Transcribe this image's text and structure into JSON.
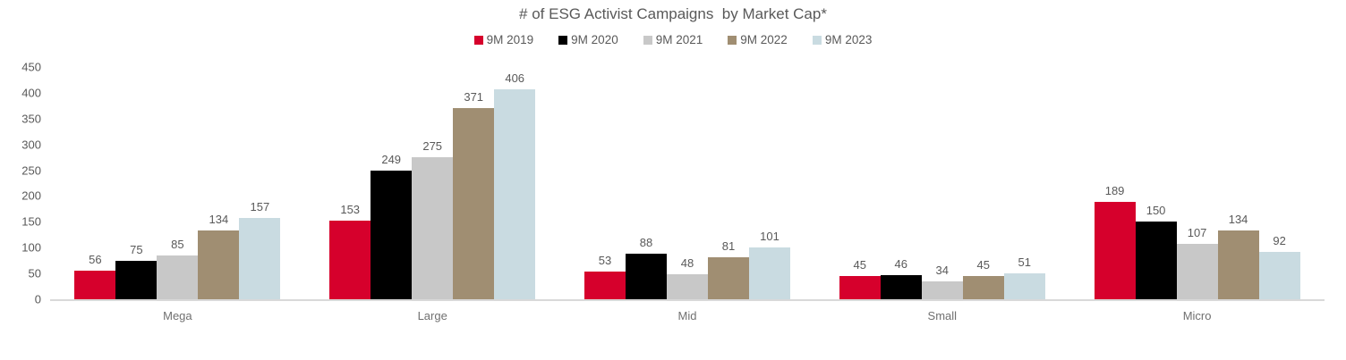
{
  "chart": {
    "title": "# of ESG Activist Campaigns  by Market Cap*"
  },
  "chart_data": {
    "type": "bar",
    "title": "# of ESG Activist Campaigns  by Market Cap*",
    "xlabel": "",
    "ylabel": "",
    "categories": [
      "Mega",
      "Large",
      "Mid",
      "Small",
      "Micro"
    ],
    "series": [
      {
        "name": "9M 2019",
        "color": "#D6002C",
        "values": [
          56,
          153,
          53,
          45,
          189
        ]
      },
      {
        "name": "9M 2020",
        "color": "#000000",
        "values": [
          75,
          249,
          88,
          46,
          150
        ]
      },
      {
        "name": "9M 2021",
        "color": "#C8C8C8",
        "values": [
          85,
          275,
          48,
          34,
          107
        ]
      },
      {
        "name": "9M 2022",
        "color": "#A08E72",
        "values": [
          134,
          371,
          81,
          45,
          134
        ]
      },
      {
        "name": "9M 2023",
        "color": "#C9DBE1",
        "values": [
          157,
          406,
          101,
          51,
          92
        ]
      }
    ],
    "ylim": [
      0,
      450
    ],
    "ytick_step": 50,
    "grid": false,
    "legend_position": "top",
    "data_labels": true,
    "axis_line_color": "#d9d9d9",
    "text_color": "#595959"
  }
}
